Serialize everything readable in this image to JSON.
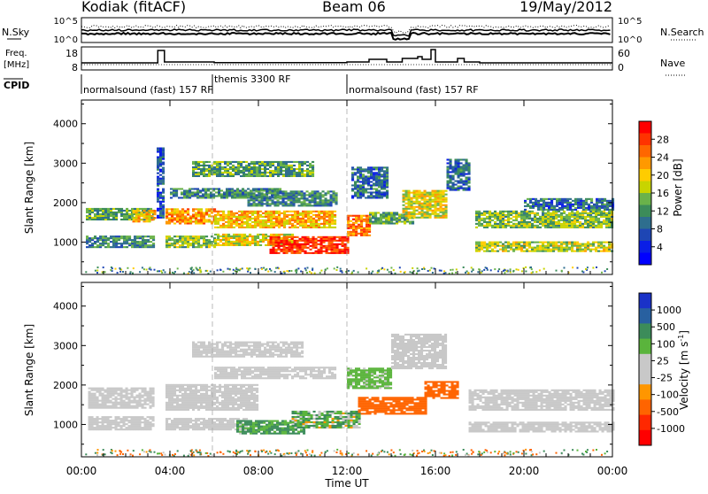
{
  "header": {
    "station": "Kodiak (fitACF)",
    "beam": "Beam 06",
    "date": "19/May/2012"
  },
  "top_panels": {
    "noise": {
      "left_label": "N.Sky",
      "right_label": "N.Search",
      "left_ticks": [
        "10^5",
        "10^0"
      ],
      "right_ticks": [
        "10^5",
        "10^0"
      ]
    },
    "freq": {
      "left_label_line1": "Freq.",
      "left_label_line2": "[MHz]",
      "right_label": "Nave",
      "left_ticks": [
        "18",
        "8"
      ],
      "right_ticks": [
        "60",
        "0"
      ]
    },
    "cpid": {
      "label": "CPID",
      "segments": [
        {
          "start_hour": 0.0,
          "text": "normalsound (fast) 157 RF"
        },
        {
          "start_hour": 6.0,
          "text": "themis 3300 RF"
        },
        {
          "start_hour": 12.0,
          "text": "normalsound (fast) 157 RF"
        }
      ]
    }
  },
  "panel_labels": {
    "power_ylabel": "Slant Range [km]",
    "velocity_ylabel": "Slant Range [km]",
    "xlabel": "Time UT"
  },
  "colorbars": {
    "power": {
      "title": "Power [dB]",
      "ticks": [
        "28",
        "24",
        "20",
        "16",
        "12",
        "8",
        "4"
      ],
      "colors": [
        "#ff0000",
        "#ff3300",
        "#ff6600",
        "#ff9900",
        "#ffcc00",
        "#c8d400",
        "#6ab24a",
        "#3c8c5a",
        "#2e6e8e",
        "#1e46b4",
        "#0a1ee6",
        "#0000ff"
      ]
    },
    "velocity": {
      "title": "Velocity [m s^-1]",
      "ticks": [
        "1000",
        "500",
        "100",
        "25",
        "-25",
        "-100",
        "-500",
        "-1000"
      ],
      "colors": [
        "#1a32c8",
        "#2860a0",
        "#3c8c5a",
        "#5ab43c",
        "#c8c8c8",
        "#c8c8c8",
        "#ff9600",
        "#ff6400",
        "#ff2800",
        "#ff0000"
      ]
    }
  },
  "chart_data": {
    "type": "heatmap",
    "x_axis": {
      "label": "Time UT",
      "range_hours": [
        0,
        24
      ],
      "tick_hours": [
        0,
        4,
        8,
        12,
        16,
        20,
        24
      ],
      "tick_labels": [
        "00:00",
        "04:00",
        "08:00",
        "12:00",
        "16:00",
        "20:00",
        "00:00"
      ]
    },
    "y_axis": {
      "label": "Slant Range [km]",
      "range_km": [
        180,
        4600
      ],
      "tick_km": [
        1000,
        2000,
        3000,
        4000
      ],
      "tick_labels": [
        "1000",
        "2000",
        "3000",
        "4000"
      ]
    },
    "freq_trace": [
      [
        0.0,
        10.5
      ],
      [
        3.45,
        10.5
      ],
      [
        3.45,
        17.5
      ],
      [
        3.75,
        17.5
      ],
      [
        3.75,
        11.0
      ],
      [
        6.0,
        11.0
      ],
      [
        6.0,
        10.6
      ],
      [
        12.0,
        10.6
      ],
      [
        12.0,
        11.0
      ],
      [
        13.0,
        11.0
      ],
      [
        13.0,
        12.5
      ],
      [
        13.8,
        12.5
      ],
      [
        13.8,
        11.0
      ],
      [
        14.5,
        11.0
      ],
      [
        14.5,
        13.0
      ],
      [
        15.2,
        13.0
      ],
      [
        15.2,
        14.0
      ],
      [
        15.4,
        14.0
      ],
      [
        15.4,
        12.5
      ],
      [
        15.8,
        12.5
      ],
      [
        15.8,
        18.0
      ],
      [
        16.0,
        18.0
      ],
      [
        16.0,
        11.0
      ],
      [
        17.0,
        11.0
      ],
      [
        17.0,
        13.0
      ],
      [
        17.3,
        13.0
      ],
      [
        17.3,
        11.0
      ],
      [
        18.0,
        11.0
      ],
      [
        18.0,
        10.5
      ],
      [
        24.0,
        10.5
      ]
    ],
    "power_regions": [
      {
        "t0": 0.2,
        "t1": 3.3,
        "r0": 1550,
        "r1": 1850,
        "db": 12
      },
      {
        "t0": 0.2,
        "t1": 3.3,
        "r0": 850,
        "r1": 1150,
        "db": 10
      },
      {
        "t0": 2.3,
        "t1": 3.3,
        "r0": 1500,
        "r1": 1800,
        "db": 20
      },
      {
        "t0": 3.4,
        "t1": 3.7,
        "r0": 1600,
        "r1": 3400,
        "db": 6
      },
      {
        "t0": 3.8,
        "t1": 6.0,
        "r0": 1450,
        "r1": 1850,
        "db": 22
      },
      {
        "t0": 3.8,
        "t1": 6.0,
        "r0": 850,
        "r1": 1150,
        "db": 14
      },
      {
        "t0": 4.0,
        "t1": 9.0,
        "r0": 2100,
        "r1": 2350,
        "db": 10
      },
      {
        "t0": 6.0,
        "t1": 11.5,
        "r0": 1350,
        "r1": 1800,
        "db": 20
      },
      {
        "t0": 6.0,
        "t1": 9.5,
        "r0": 900,
        "r1": 1200,
        "db": 18
      },
      {
        "t0": 5.0,
        "t1": 10.5,
        "r0": 2650,
        "r1": 3050,
        "db": 12
      },
      {
        "t0": 8.5,
        "t1": 12.0,
        "r0": 700,
        "r1": 1150,
        "db": 28
      },
      {
        "t0": 7.5,
        "t1": 11.5,
        "r0": 1900,
        "r1": 2300,
        "db": 10
      },
      {
        "t0": 12.0,
        "t1": 13.0,
        "r0": 1150,
        "r1": 1650,
        "db": 24
      },
      {
        "t0": 12.2,
        "t1": 13.8,
        "r0": 2100,
        "r1": 2900,
        "db": 8
      },
      {
        "t0": 13.0,
        "t1": 15.0,
        "r0": 1450,
        "r1": 1750,
        "db": 12
      },
      {
        "t0": 14.5,
        "t1": 16.5,
        "r0": 1600,
        "r1": 2300,
        "db": 18
      },
      {
        "t0": 16.5,
        "t1": 17.5,
        "r0": 2300,
        "r1": 3100,
        "db": 8
      },
      {
        "t0": 17.8,
        "t1": 24.0,
        "r0": 1350,
        "r1": 1800,
        "db": 14
      },
      {
        "t0": 17.8,
        "t1": 24.0,
        "r0": 750,
        "r1": 1000,
        "db": 16
      },
      {
        "t0": 20.0,
        "t1": 24.0,
        "r0": 1800,
        "r1": 2100,
        "db": 8
      }
    ],
    "velocity_regions": [
      {
        "t0": 0.3,
        "t1": 3.3,
        "r0": 1400,
        "r1": 1900,
        "v": 0
      },
      {
        "t0": 0.3,
        "t1": 3.3,
        "r0": 850,
        "r1": 1200,
        "v": 0
      },
      {
        "t0": 3.8,
        "t1": 8.0,
        "r0": 1350,
        "r1": 2000,
        "v": 0
      },
      {
        "t0": 3.8,
        "t1": 7.5,
        "r0": 850,
        "r1": 1150,
        "v": 0
      },
      {
        "t0": 5.0,
        "t1": 10.0,
        "r0": 2700,
        "r1": 3100,
        "v": 0
      },
      {
        "t0": 6.0,
        "t1": 11.5,
        "r0": 2150,
        "r1": 2450,
        "v": 0
      },
      {
        "t0": 7.0,
        "t1": 10.0,
        "r0": 750,
        "r1": 1100,
        "v": 120
      },
      {
        "t0": 9.5,
        "t1": 12.5,
        "r0": 900,
        "r1": 1350,
        "v": 60
      },
      {
        "t0": 12.5,
        "t1": 15.5,
        "r0": 1250,
        "r1": 1700,
        "v": -300
      },
      {
        "t0": 15.5,
        "t1": 17.0,
        "r0": 1650,
        "r1": 2100,
        "v": -250
      },
      {
        "t0": 12.0,
        "t1": 14.0,
        "r0": 1900,
        "r1": 2400,
        "v": 40
      },
      {
        "t0": 17.5,
        "t1": 24.0,
        "r0": 1350,
        "r1": 1850,
        "v": 0
      },
      {
        "t0": 17.5,
        "t1": 24.0,
        "r0": 800,
        "r1": 1050,
        "v": 0
      },
      {
        "t0": 14.0,
        "t1": 16.5,
        "r0": 2400,
        "r1": 3300,
        "v": 0
      }
    ]
  }
}
